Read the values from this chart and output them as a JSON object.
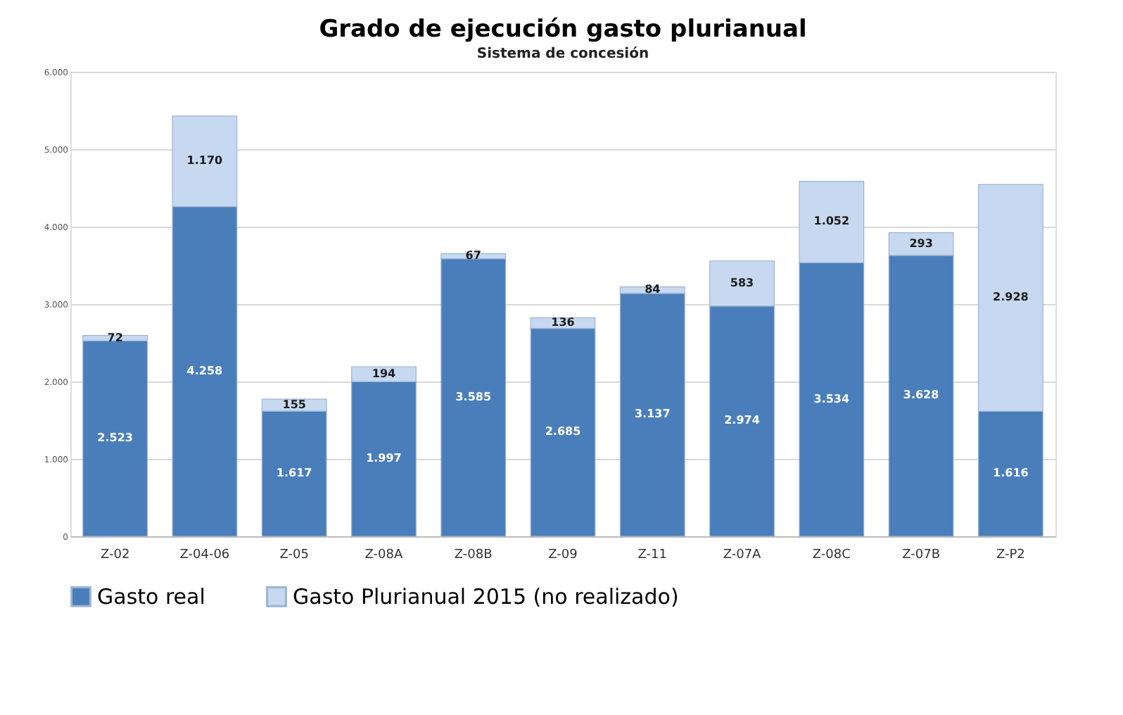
{
  "chart_data": {
    "type": "bar",
    "title": "Grado de ejecución gasto plurianual",
    "subtitle": "Sistema de concesión",
    "stacked": true,
    "grid": "y",
    "legend": "bottom",
    "categories": [
      "Z-02",
      "Z-04-06",
      "Z-05",
      "Z-08A",
      "Z-08B",
      "Z-09",
      "Z-11",
      "Z-07A",
      "Z-08C",
      "Z-07B",
      "Z-P2"
    ],
    "series": [
      {
        "name": "Gasto real",
        "color": "#4a7ebb",
        "values": [
          2523,
          4258,
          1617,
          1997,
          3585,
          2685,
          3137,
          2974,
          3534,
          3628,
          1616
        ],
        "value_labels": [
          "2.523",
          "4.258",
          "1.617",
          "1.997",
          "3.585",
          "2.685",
          "3.137",
          "2.974",
          "3.534",
          "3.628",
          "1.616"
        ]
      },
      {
        "name": "Gasto Plurianual 2015 (no realizado)",
        "color": "#c6d9f1",
        "values": [
          72,
          1170,
          155,
          194,
          67,
          136,
          84,
          583,
          1052,
          293,
          2928
        ],
        "value_labels": [
          "72",
          "1.170",
          "155",
          "194",
          "67",
          "136",
          "84",
          "583",
          "1.052",
          "293",
          "2.928"
        ]
      }
    ],
    "ylim": [
      0,
      6000
    ],
    "yticks": [
      0,
      {
        "value": 1000,
        "label": "1.000"
      },
      {
        "value": 2000,
        "label": "2.000"
      },
      {
        "value": 3000,
        "label": "3.000"
      },
      {
        "value": 4000,
        "label": "4.000"
      },
      {
        "value": 5000,
        "label": "5.000"
      },
      {
        "value": 6000,
        "label": "6.000"
      }
    ]
  }
}
